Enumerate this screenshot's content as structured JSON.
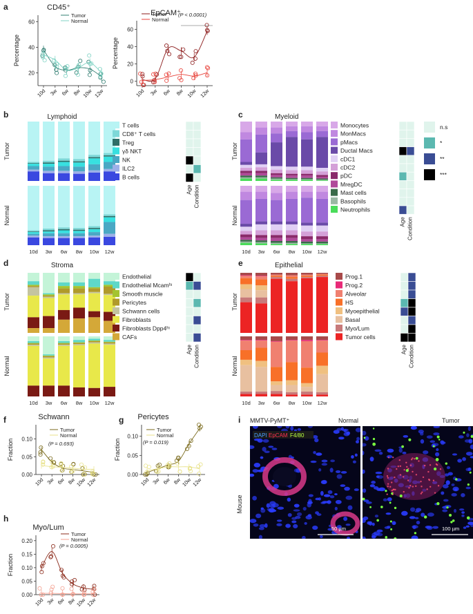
{
  "colors": {
    "tumor_teal": "#2f7c70",
    "normal_teal": "#7fd3c4",
    "tumor_red": "#8b1a1a",
    "normal_red": "#e8423a",
    "sig_ns": "#e0f4ec",
    "sig_1": "#5bb8b0",
    "sig_2": "#3a4d94",
    "sig_3": "#000000",
    "fig_dark_gold": "#7a6a1c",
    "fig_light_gold": "#e8e28a",
    "myo_dark": "#8b2a1a",
    "myo_light": "#f4a090"
  },
  "time_labels": [
    "10d",
    "3w",
    "6w",
    "8w",
    "10w",
    "12w"
  ],
  "panel_a": {
    "letter": "a",
    "cd45": {
      "title": "CD45⁺",
      "ylabel": "Percentage",
      "legend": [
        "Tumor",
        "Normal"
      ],
      "yticks": [
        "20",
        "40",
        "60"
      ]
    },
    "epcam": {
      "title": "EpCAM⁺",
      "ylabel": "Percentage",
      "legend": [
        "Tumor",
        "Normal"
      ],
      "pval": "(P < 0.0001)",
      "yticks": [
        "0",
        "20",
        "40",
        "60"
      ]
    }
  },
  "panel_b": {
    "letter": "b",
    "title": "Lymphoid",
    "row_tumor": "Tumor",
    "row_normal": "Normal",
    "legend": [
      "T cells",
      "CD8⁺ T cells",
      "Treg",
      "γδ NKT",
      "NK",
      "ILC2",
      "B cells"
    ],
    "colors": [
      "#b8f4f4",
      "#7ed8d8",
      "#2e6e68",
      "#38e0e0",
      "#4aa8c4",
      "#9eb0e8",
      "#3a48e0"
    ],
    "sig_cols": [
      "Age",
      "Condition"
    ]
  },
  "panel_c": {
    "letter": "c",
    "title": "Myeloid",
    "row_tumor": "Tumor",
    "row_normal": "Normal",
    "legend": [
      "Monocytes",
      "MonMacs",
      "pMacs",
      "Ductal Macs",
      "cDC1",
      "cDC2",
      "pDC",
      "MregDC",
      "Mast cells",
      "Basophils",
      "Neutrophils"
    ],
    "colors": [
      "#d8a8e8",
      "#c088e0",
      "#9a6ad4",
      "#6a4aa8",
      "#e0d0f4",
      "#d4a0d8",
      "#8a2a6a",
      "#b04a9a",
      "#3a6a4a",
      "#9ab8a4",
      "#4adc5a"
    ],
    "sig_cols": [
      "Age",
      "Condition"
    ],
    "sig_legend": [
      "n.s",
      "*",
      "**",
      "***"
    ]
  },
  "panel_d": {
    "letter": "d",
    "title": "Stroma",
    "row_tumor": "Tumor",
    "row_normal": "Normal",
    "legend": [
      "Endothelial",
      "Endothelial Mcamʰᶦ",
      "Smooth muscle",
      "Pericytes",
      "Schwann cells",
      "Fibroblasts",
      "Fibroblasts Dpp4ʰᶦ",
      "CAFs"
    ],
    "colors": [
      "#c4f4d8",
      "#5ed8c8",
      "#a4c430",
      "#b09a2a",
      "#c4c4a0",
      "#e8e84a",
      "#7a1a14",
      "#d4a838"
    ],
    "sig_cols": [
      "Age",
      "Condition"
    ]
  },
  "panel_e": {
    "letter": "e",
    "title": "Epithelial",
    "row_tumor": "Tumor",
    "row_normal": "Normal",
    "legend": [
      "Prog.1",
      "Prog.2",
      "Alveolar",
      "HS",
      "Myoepithelial",
      "Basal",
      "Myo/Lum",
      "Tumor cells"
    ],
    "colors": [
      "#a84a4a",
      "#e82a78",
      "#f08070",
      "#f87028",
      "#f0c080",
      "#e8c0a0",
      "#c87a7a",
      "#ec2424"
    ],
    "sig_cols": [
      "Age",
      "Condition"
    ]
  },
  "panel_f": {
    "letter": "f",
    "title": "Schwann",
    "ylabel": "Fraction",
    "legend": [
      "Tumor",
      "Normal"
    ],
    "pval": "(P = 0.693)",
    "yticks": [
      "0.00",
      "0.05",
      "0.10"
    ]
  },
  "panel_g": {
    "letter": "g",
    "title": "Pericytes",
    "ylabel": "Fraction",
    "legend": [
      "Tumor",
      "Normal"
    ],
    "pval": "(P = 0.019)",
    "yticks": [
      "0.00",
      "0.05",
      "0.10"
    ]
  },
  "panel_h": {
    "letter": "h",
    "title": "Myo/Lum",
    "ylabel": "Fraction",
    "legend": [
      "Tumor",
      "Normal"
    ],
    "pval": "(P = 0.0005)",
    "yticks": [
      "0.00",
      "0.05",
      "0.10",
      "0.15",
      "0.20"
    ]
  },
  "panel_i": {
    "letter": "i",
    "header": "MMTV-PyMT⁺",
    "col_normal": "Normal",
    "col_tumor": "Tumor",
    "row_label": "Mouse",
    "stain_dapi": "DAPI",
    "stain_epcam": "EpCAM",
    "stain_f480": "F4/80",
    "scale_normal": "50 µm",
    "scale_tumor": "100 µm",
    "stain_colors": {
      "dapi": "#4aa0ff",
      "epcam": "#ff3050",
      "f480": "#b8ff40"
    }
  },
  "chart_data": [
    {
      "type": "line",
      "title": "CD45⁺",
      "ylabel": "Percentage",
      "x": [
        "10d",
        "3w",
        "6w",
        "8w",
        "10w",
        "12w"
      ],
      "ylim": [
        10,
        65
      ],
      "series": [
        {
          "name": "Tumor",
          "values": [
            38,
            25,
            22,
            24,
            23,
            17
          ]
        },
        {
          "name": "Normal",
          "values": [
            34,
            30,
            22,
            24,
            28,
            20
          ]
        }
      ]
    },
    {
      "type": "line",
      "title": "EpCAM⁺",
      "ylabel": "Percentage",
      "x": [
        "10d",
        "3w",
        "6w",
        "8w",
        "10w",
        "12w"
      ],
      "ylim": [
        -5,
        70
      ],
      "series": [
        {
          "name": "Tumor",
          "values": [
            2,
            3,
            38,
            35,
            28,
            58
          ]
        },
        {
          "name": "Normal",
          "values": [
            1,
            2,
            5,
            8,
            6,
            10
          ]
        }
      ]
    },
    {
      "type": "bar",
      "title": "Lymphoid",
      "x": [
        "10d",
        "3w",
        "6w",
        "8w",
        "10w",
        "12w"
      ],
      "stacked": true,
      "series_names": [
        "T cells",
        "CD8⁺ T cells",
        "Treg",
        "γδ NKT",
        "NK",
        "ILC2",
        "B cells"
      ],
      "tumor": [
        [
          0.68,
          0.02,
          0.01,
          0.04,
          0.06,
          0.03,
          0.16
        ],
        [
          0.66,
          0.03,
          0.02,
          0.05,
          0.07,
          0.04,
          0.13
        ],
        [
          0.62,
          0.04,
          0.02,
          0.07,
          0.08,
          0.04,
          0.13
        ],
        [
          0.63,
          0.04,
          0.02,
          0.07,
          0.08,
          0.04,
          0.12
        ],
        [
          0.56,
          0.04,
          0.02,
          0.1,
          0.1,
          0.04,
          0.14
        ],
        [
          0.53,
          0.04,
          0.02,
          0.09,
          0.12,
          0.04,
          0.16
        ]
      ],
      "normal": [
        [
          0.75,
          0.02,
          0.01,
          0.03,
          0.03,
          0.03,
          0.13
        ],
        [
          0.72,
          0.03,
          0.02,
          0.03,
          0.05,
          0.03,
          0.12
        ],
        [
          0.7,
          0.03,
          0.02,
          0.05,
          0.05,
          0.03,
          0.12
        ],
        [
          0.71,
          0.03,
          0.02,
          0.04,
          0.05,
          0.03,
          0.12
        ],
        [
          0.68,
          0.03,
          0.02,
          0.05,
          0.06,
          0.03,
          0.13
        ],
        [
          0.48,
          0.03,
          0.02,
          0.08,
          0.2,
          0.05,
          0.14
        ]
      ]
    },
    {
      "type": "bar",
      "title": "Myeloid",
      "x": [
        "10d",
        "3w",
        "6w",
        "8w",
        "10w",
        "12w"
      ],
      "stacked": true,
      "series_names": [
        "Monocytes",
        "MonMacs",
        "pMacs",
        "Ductal Macs",
        "cDC1",
        "cDC2",
        "pDC",
        "MregDC",
        "Mast cells",
        "Basophils",
        "Neutrophils"
      ],
      "tumor": [
        [
          0.18,
          0.12,
          0.38,
          0.05,
          0.05,
          0.05,
          0.04,
          0.04,
          0.03,
          0.02,
          0.04
        ],
        [
          0.1,
          0.12,
          0.3,
          0.2,
          0.05,
          0.06,
          0.04,
          0.04,
          0.03,
          0.02,
          0.04
        ],
        [
          0.1,
          0.1,
          0.15,
          0.4,
          0.06,
          0.06,
          0.03,
          0.04,
          0.02,
          0.02,
          0.02
        ],
        [
          0.08,
          0.08,
          0.1,
          0.5,
          0.06,
          0.06,
          0.03,
          0.04,
          0.02,
          0.01,
          0.02
        ],
        [
          0.08,
          0.1,
          0.12,
          0.46,
          0.06,
          0.06,
          0.03,
          0.04,
          0.02,
          0.01,
          0.02
        ],
        [
          0.08,
          0.08,
          0.1,
          0.52,
          0.06,
          0.06,
          0.03,
          0.03,
          0.02,
          0.01,
          0.01
        ]
      ],
      "normal": [
        [
          0.1,
          0.14,
          0.4,
          0.05,
          0.07,
          0.06,
          0.05,
          0.04,
          0.03,
          0.02,
          0.04
        ],
        [
          0.1,
          0.12,
          0.38,
          0.05,
          0.1,
          0.08,
          0.05,
          0.04,
          0.03,
          0.02,
          0.03
        ],
        [
          0.12,
          0.12,
          0.36,
          0.05,
          0.1,
          0.08,
          0.05,
          0.05,
          0.03,
          0.02,
          0.02
        ],
        [
          0.1,
          0.12,
          0.38,
          0.05,
          0.1,
          0.08,
          0.05,
          0.05,
          0.03,
          0.02,
          0.02
        ],
        [
          0.1,
          0.1,
          0.42,
          0.05,
          0.1,
          0.08,
          0.05,
          0.04,
          0.03,
          0.01,
          0.02
        ],
        [
          0.1,
          0.12,
          0.4,
          0.05,
          0.1,
          0.08,
          0.05,
          0.04,
          0.03,
          0.01,
          0.02
        ]
      ]
    },
    {
      "type": "bar",
      "title": "Stroma",
      "x": [
        "10d",
        "3w",
        "6w",
        "8w",
        "10w",
        "12w"
      ],
      "stacked": true,
      "series_names": [
        "Endothelial",
        "Endothelial Mcamʰᶦ",
        "Smooth muscle",
        "Pericytes",
        "Schwann cells",
        "Fibroblasts",
        "Fibroblasts Dpp4ʰᶦ",
        "CAFs"
      ],
      "tumor": [
        [
          0.14,
          0.06,
          0.02,
          0.02,
          0.14,
          0.36,
          0.18,
          0.08
        ],
        [
          0.34,
          0.02,
          0.02,
          0.02,
          0.02,
          0.3,
          0.2,
          0.08
        ],
        [
          0.16,
          0.06,
          0.04,
          0.08,
          0.02,
          0.26,
          0.16,
          0.22
        ],
        [
          0.16,
          0.06,
          0.04,
          0.08,
          0.02,
          0.22,
          0.18,
          0.24
        ],
        [
          0.1,
          0.14,
          0.02,
          0.06,
          0.02,
          0.3,
          0.1,
          0.26
        ],
        [
          0.14,
          0.06,
          0.03,
          0.12,
          0.02,
          0.28,
          0.15,
          0.2
        ]
      ],
      "normal": [
        [
          0.08,
          0.03,
          0.01,
          0.02,
          0.02,
          0.66,
          0.18,
          0.0
        ],
        [
          0.3,
          0.02,
          0.01,
          0.02,
          0.02,
          0.45,
          0.18,
          0.0
        ],
        [
          0.08,
          0.03,
          0.01,
          0.02,
          0.02,
          0.66,
          0.18,
          0.0
        ],
        [
          0.06,
          0.04,
          0.01,
          0.02,
          0.02,
          0.7,
          0.15,
          0.0
        ],
        [
          0.04,
          0.03,
          0.01,
          0.02,
          0.02,
          0.74,
          0.14,
          0.0
        ],
        [
          0.06,
          0.03,
          0.01,
          0.02,
          0.02,
          0.7,
          0.16,
          0.0
        ]
      ]
    },
    {
      "type": "bar",
      "title": "Epithelial",
      "x": [
        "10d",
        "3w",
        "6w",
        "8w",
        "10w",
        "12w"
      ],
      "stacked": true,
      "series_names": [
        "Prog.1",
        "Prog.2",
        "Alveolar",
        "HS",
        "Myoepithelial",
        "Basal",
        "Myo/Lum",
        "Tumor cells"
      ],
      "tumor": [
        [
          0.04,
          0.01,
          0.04,
          0.1,
          0.08,
          0.14,
          0.08,
          0.51
        ],
        [
          0.05,
          0.01,
          0.05,
          0.1,
          0.08,
          0.12,
          0.1,
          0.49
        ],
        [
          0.03,
          0.0,
          0.02,
          0.02,
          0.0,
          0.0,
          0.03,
          0.9
        ],
        [
          0.04,
          0.0,
          0.03,
          0.03,
          0.0,
          0.0,
          0.04,
          0.86
        ],
        [
          0.03,
          0.0,
          0.02,
          0.02,
          0.0,
          0.0,
          0.02,
          0.91
        ],
        [
          0.02,
          0.0,
          0.01,
          0.02,
          0.0,
          0.0,
          0.02,
          0.93
        ]
      ],
      "normal": [
        [
          0.06,
          0.01,
          0.16,
          0.16,
          0.09,
          0.44,
          0.04,
          0.04
        ],
        [
          0.06,
          0.01,
          0.12,
          0.22,
          0.1,
          0.41,
          0.04,
          0.04
        ],
        [
          0.08,
          0.01,
          0.42,
          0.24,
          0.06,
          0.1,
          0.05,
          0.04
        ],
        [
          0.06,
          0.01,
          0.36,
          0.3,
          0.08,
          0.12,
          0.04,
          0.03
        ],
        [
          0.06,
          0.02,
          0.44,
          0.26,
          0.06,
          0.08,
          0.05,
          0.03
        ],
        [
          0.06,
          0.01,
          0.2,
          0.22,
          0.14,
          0.3,
          0.04,
          0.03
        ]
      ]
    },
    {
      "type": "line",
      "title": "Schwann",
      "ylabel": "Fraction",
      "x": [
        "10d",
        "3w",
        "6w",
        "8w",
        "10w",
        "12w"
      ],
      "ylim": [
        0,
        0.14
      ],
      "series": [
        {
          "name": "Tumor",
          "values": [
            0.07,
            0.035,
            0.018,
            0.014,
            0.01,
            0.006
          ]
        },
        {
          "name": "Normal",
          "values": [
            0.025,
            0.022,
            0.02,
            0.018,
            0.015,
            0.015
          ]
        }
      ]
    },
    {
      "type": "line",
      "title": "Pericytes",
      "ylabel": "Fraction",
      "x": [
        "10d",
        "3w",
        "6w",
        "8w",
        "10w",
        "12w"
      ],
      "ylim": [
        0,
        0.13
      ],
      "series": [
        {
          "name": "Tumor",
          "values": [
            0.005,
            0.015,
            0.025,
            0.035,
            0.08,
            0.12
          ]
        },
        {
          "name": "Normal",
          "values": [
            0.01,
            0.015,
            0.02,
            0.02,
            0.02,
            0.015
          ]
        }
      ]
    },
    {
      "type": "line",
      "title": "Myo/Lum",
      "ylabel": "Fraction",
      "x": [
        "10d",
        "3w",
        "6w",
        "8w",
        "10w",
        "12w"
      ],
      "ylim": [
        0,
        0.22
      ],
      "series": [
        {
          "name": "Tumor",
          "values": [
            0.1,
            0.16,
            0.08,
            0.04,
            0.025,
            0.02
          ]
        },
        {
          "name": "Normal",
          "values": [
            0.005,
            0.005,
            0.004,
            0.003,
            0.003,
            0.003
          ]
        }
      ]
    }
  ]
}
